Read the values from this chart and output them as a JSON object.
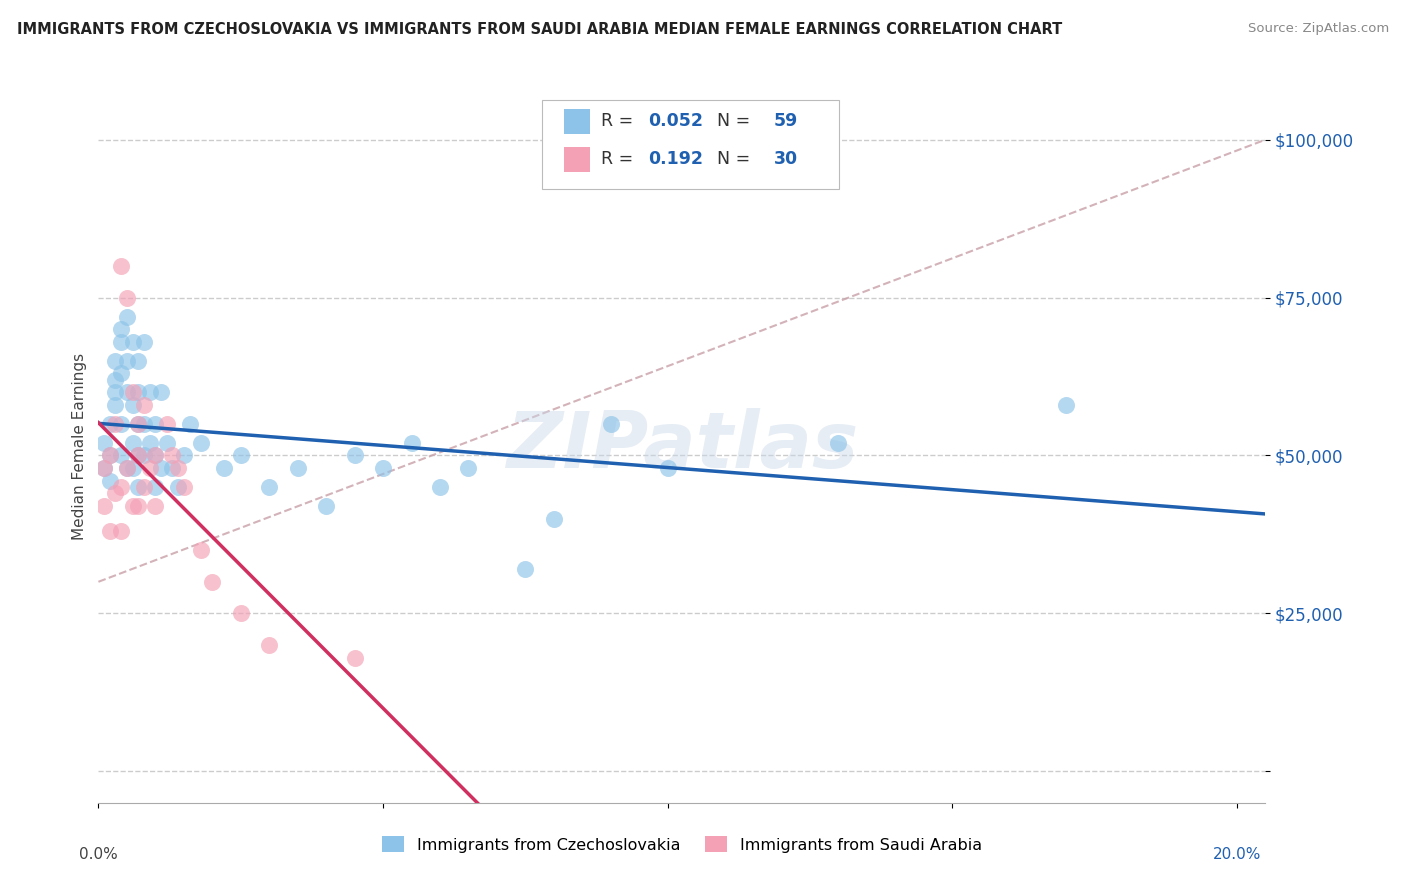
{
  "title": "IMMIGRANTS FROM CZECHOSLOVAKIA VS IMMIGRANTS FROM SAUDI ARABIA MEDIAN FEMALE EARNINGS CORRELATION CHART",
  "source": "Source: ZipAtlas.com",
  "ylabel": "Median Female Earnings",
  "y_ticks": [
    0,
    25000,
    50000,
    75000,
    100000
  ],
  "y_tick_labels": [
    "",
    "$25,000",
    "$50,000",
    "$75,000",
    "$100,000"
  ],
  "xlim": [
    0.0,
    0.205
  ],
  "ylim": [
    -5000,
    108000
  ],
  "legend": {
    "R1": "0.052",
    "N1": "59",
    "R2": "0.192",
    "N2": "30"
  },
  "color_blue": "#8dc3e8",
  "color_pink": "#f4a0b5",
  "line_blue": "#2060b0",
  "line_pink": "#d03060",
  "line_dashed_color": "#c8a0a8",
  "background": "#ffffff",
  "watermark": "ZIPatlas",
  "series1_x": [
    0.001,
    0.001,
    0.002,
    0.002,
    0.002,
    0.003,
    0.003,
    0.003,
    0.003,
    0.004,
    0.004,
    0.004,
    0.004,
    0.004,
    0.005,
    0.005,
    0.005,
    0.005,
    0.006,
    0.006,
    0.006,
    0.006,
    0.007,
    0.007,
    0.007,
    0.007,
    0.007,
    0.008,
    0.008,
    0.008,
    0.009,
    0.009,
    0.01,
    0.01,
    0.01,
    0.011,
    0.011,
    0.012,
    0.013,
    0.014,
    0.015,
    0.016,
    0.018,
    0.022,
    0.025,
    0.03,
    0.035,
    0.04,
    0.045,
    0.05,
    0.055,
    0.06,
    0.065,
    0.075,
    0.08,
    0.09,
    0.1,
    0.13,
    0.17
  ],
  "series1_y": [
    48000,
    52000,
    50000,
    55000,
    46000,
    62000,
    65000,
    60000,
    58000,
    68000,
    70000,
    63000,
    55000,
    50000,
    72000,
    65000,
    60000,
    48000,
    68000,
    58000,
    52000,
    48000,
    65000,
    60000,
    55000,
    50000,
    45000,
    68000,
    55000,
    50000,
    60000,
    52000,
    55000,
    50000,
    45000,
    60000,
    48000,
    52000,
    48000,
    45000,
    50000,
    55000,
    52000,
    48000,
    50000,
    45000,
    48000,
    42000,
    50000,
    48000,
    52000,
    45000,
    48000,
    32000,
    40000,
    55000,
    48000,
    52000,
    58000
  ],
  "series2_x": [
    0.001,
    0.001,
    0.002,
    0.002,
    0.003,
    0.003,
    0.004,
    0.004,
    0.004,
    0.005,
    0.005,
    0.006,
    0.006,
    0.007,
    0.007,
    0.007,
    0.008,
    0.008,
    0.009,
    0.01,
    0.01,
    0.012,
    0.013,
    0.014,
    0.015,
    0.018,
    0.02,
    0.025,
    0.03,
    0.045
  ],
  "series2_y": [
    48000,
    42000,
    50000,
    38000,
    55000,
    44000,
    80000,
    45000,
    38000,
    75000,
    48000,
    60000,
    42000,
    55000,
    50000,
    42000,
    58000,
    45000,
    48000,
    50000,
    42000,
    55000,
    50000,
    48000,
    45000,
    35000,
    30000,
    25000,
    20000,
    18000
  ]
}
